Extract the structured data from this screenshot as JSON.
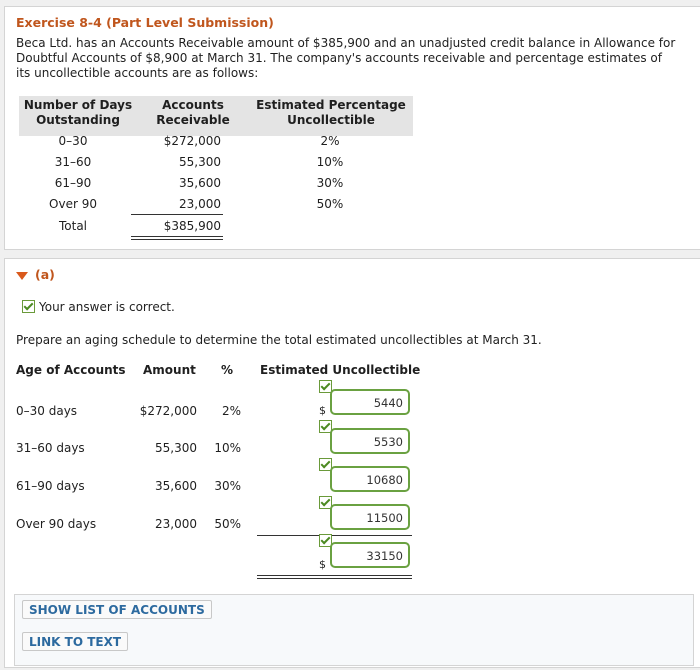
{
  "exercise": {
    "title": "Exercise 8-4 (Part Level Submission)",
    "intro": "Beca Ltd. has an Accounts Receivable amount of $385,900 and an unadjusted credit balance in Allowance for Doubtful Accounts of $8,900 at March 31. The company's accounts receivable and percentage estimates of its uncollectible accounts are as follows:"
  },
  "table1": {
    "headers": {
      "days_line1": "Number of Days",
      "days_line2": "Outstanding",
      "ar_line1": "Accounts",
      "ar_line2": "Receivable",
      "pct_line1": "Estimated Percentage",
      "pct_line2": "Uncollectible"
    },
    "rows": [
      {
        "days": "0–30",
        "amount": "$272,000",
        "pct": "2%"
      },
      {
        "days": "31–60",
        "amount": "55,300",
        "pct": "10%"
      },
      {
        "days": "61–90",
        "amount": "35,600",
        "pct": "30%"
      },
      {
        "days": "Over 90",
        "amount": "23,000",
        "pct": "50%"
      }
    ],
    "total_label": "Total",
    "total_amount": "$385,900"
  },
  "part_a": {
    "label": "(a)",
    "correct_msg": "Your answer is correct.",
    "instruction": "Prepare an aging schedule to determine the total estimated uncollectibles at March 31.",
    "headers": {
      "age": "Age of Accounts",
      "amount": "Amount",
      "pct": "%",
      "estimated": "Estimated Uncollectible"
    },
    "rows": [
      {
        "age": "0–30 days",
        "amount": "$272,000",
        "pct": "2%",
        "value": "5440"
      },
      {
        "age": "31–60 days",
        "amount": "55,300",
        "pct": "10%",
        "value": "5530"
      },
      {
        "age": "61–90 days",
        "amount": "35,600",
        "pct": "30%",
        "value": "10680"
      },
      {
        "age": "Over 90 days",
        "amount": "23,000",
        "pct": "50%",
        "value": "11500"
      }
    ],
    "total_value": "33150",
    "currency": "$"
  },
  "buttons": {
    "show_accounts": "SHOW LIST OF ACCOUNTS",
    "link_to_text": "LINK TO TEXT"
  },
  "colors": {
    "title": "#c0561d",
    "correct_green": "#6aa141",
    "link_blue": "#2d6a9f"
  }
}
